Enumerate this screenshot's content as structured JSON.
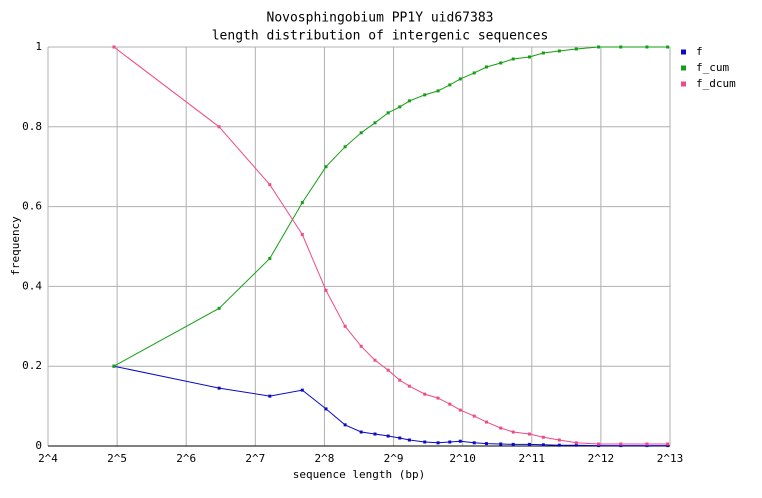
{
  "chart_data": {
    "type": "line",
    "title": "Novosphingobium PP1Y uid67383",
    "subtitle": "length distribution of intergenic sequences",
    "x_label": "sequence length (bp)",
    "y_label": "frequency",
    "x": [
      31,
      89,
      148,
      205,
      260,
      315,
      370,
      425,
      485,
      545,
      600,
      700,
      800,
      900,
      1000,
      1150,
      1300,
      1500,
      1700,
      2000,
      2300,
      2700,
      3200,
      4000,
      5000,
      6500,
      8000
    ],
    "series": [
      {
        "name": "f",
        "color": "#0a0ac8",
        "values": [
          0.2,
          0.145,
          0.125,
          0.14,
          0.093,
          0.053,
          0.035,
          0.03,
          0.025,
          0.02,
          0.015,
          0.01,
          0.008,
          0.01,
          0.012,
          0.008,
          0.006,
          0.005,
          0.004,
          0.004,
          0.003,
          0.002,
          0.002,
          0.001,
          0.001,
          0.001,
          0.001
        ]
      },
      {
        "name": "f_cum",
        "color": "#12a012",
        "values": [
          0.2,
          0.345,
          0.47,
          0.61,
          0.7,
          0.75,
          0.785,
          0.81,
          0.835,
          0.85,
          0.865,
          0.88,
          0.89,
          0.905,
          0.92,
          0.935,
          0.95,
          0.96,
          0.97,
          0.975,
          0.985,
          0.99,
          0.995,
          1,
          1,
          1,
          1
        ]
      },
      {
        "name": "f_dcum",
        "color": "#f04a86",
        "values": [
          1,
          0.8,
          0.655,
          0.53,
          0.39,
          0.3,
          0.25,
          0.215,
          0.19,
          0.165,
          0.15,
          0.13,
          0.12,
          0.105,
          0.09,
          0.075,
          0.06,
          0.045,
          0.035,
          0.03,
          0.022,
          0.015,
          0.008,
          0.005,
          0.005,
          0.005,
          0.005
        ]
      }
    ],
    "xlog_base": 2,
    "xlim": [
      16,
      8192
    ],
    "xticks": [
      {
        "value": 16,
        "label": "2^4"
      },
      {
        "value": 32,
        "label": "2^5"
      },
      {
        "value": 64,
        "label": "2^6"
      },
      {
        "value": 128,
        "label": "2^7"
      },
      {
        "value": 256,
        "label": "2^8"
      },
      {
        "value": 512,
        "label": "2^9"
      },
      {
        "value": 1024,
        "label": "2^10"
      },
      {
        "value": 2048,
        "label": "2^11"
      },
      {
        "value": 4096,
        "label": "2^12"
      },
      {
        "value": 8192,
        "label": "2^13"
      }
    ],
    "ylim": [
      0,
      1
    ],
    "yticks": [
      0,
      0.2,
      0.4,
      0.6,
      0.8,
      1
    ],
    "grid": true,
    "legend": "right"
  }
}
